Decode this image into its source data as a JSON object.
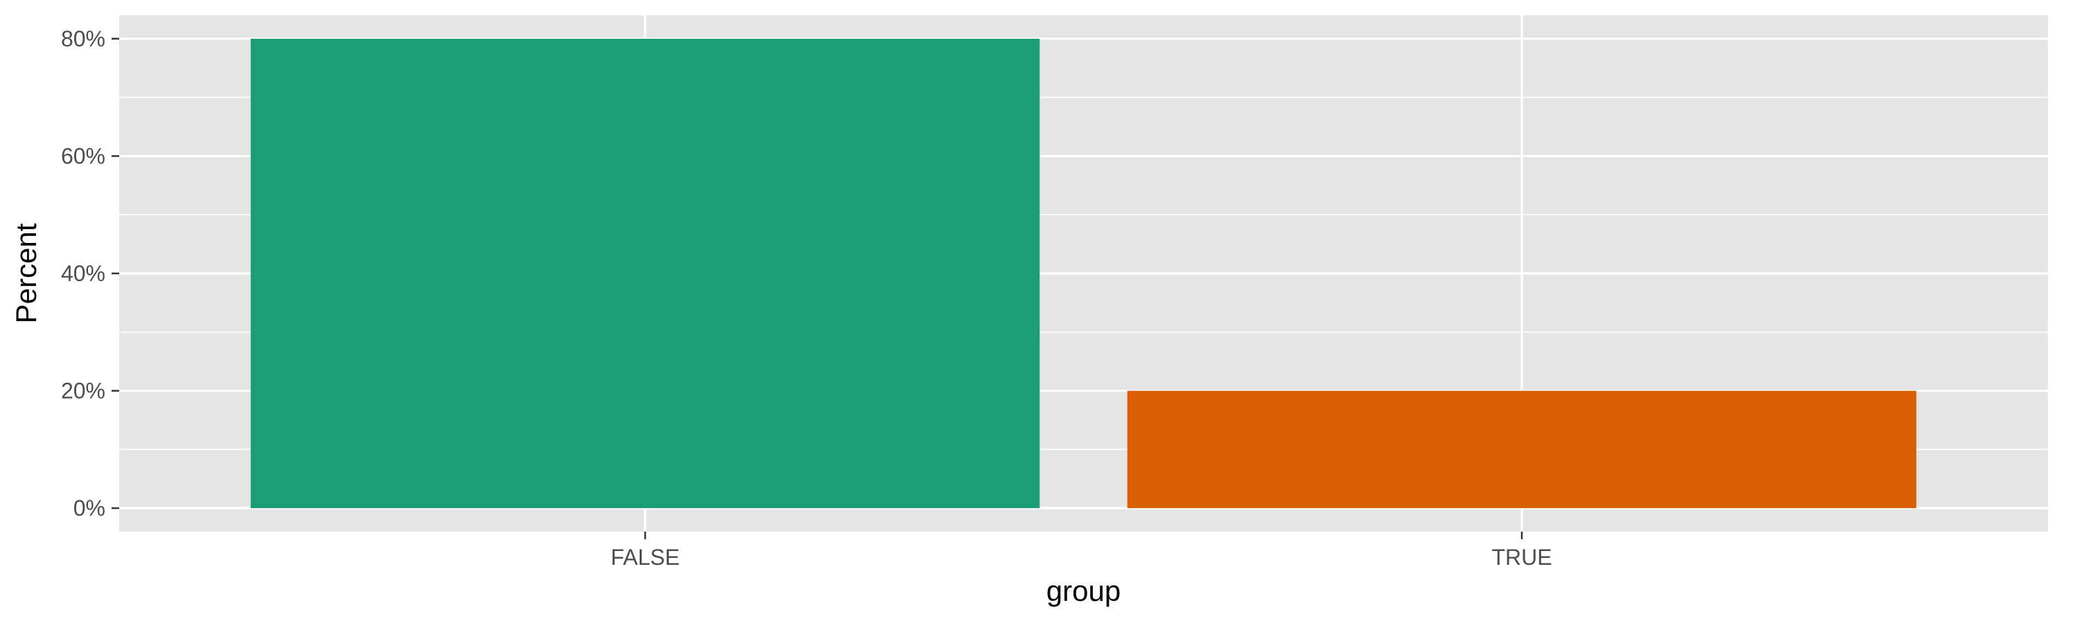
{
  "chart_data": {
    "type": "bar",
    "title": "",
    "xlabel": "group",
    "ylabel": "Percent",
    "categories": [
      "FALSE",
      "TRUE"
    ],
    "values": [
      0.8,
      0.2
    ],
    "bar_colors": [
      "#1b9e77",
      "#d95f02"
    ],
    "ylim": [
      -0.04,
      0.84
    ],
    "yticks": [
      0,
      0.2,
      0.4,
      0.6,
      0.8
    ],
    "ytick_labels": [
      "0%",
      "20%",
      "40%",
      "60%",
      "80%"
    ],
    "grid": true,
    "legend": "none",
    "panel_background": "#e5e5e5",
    "grid_color": "#ffffff"
  }
}
